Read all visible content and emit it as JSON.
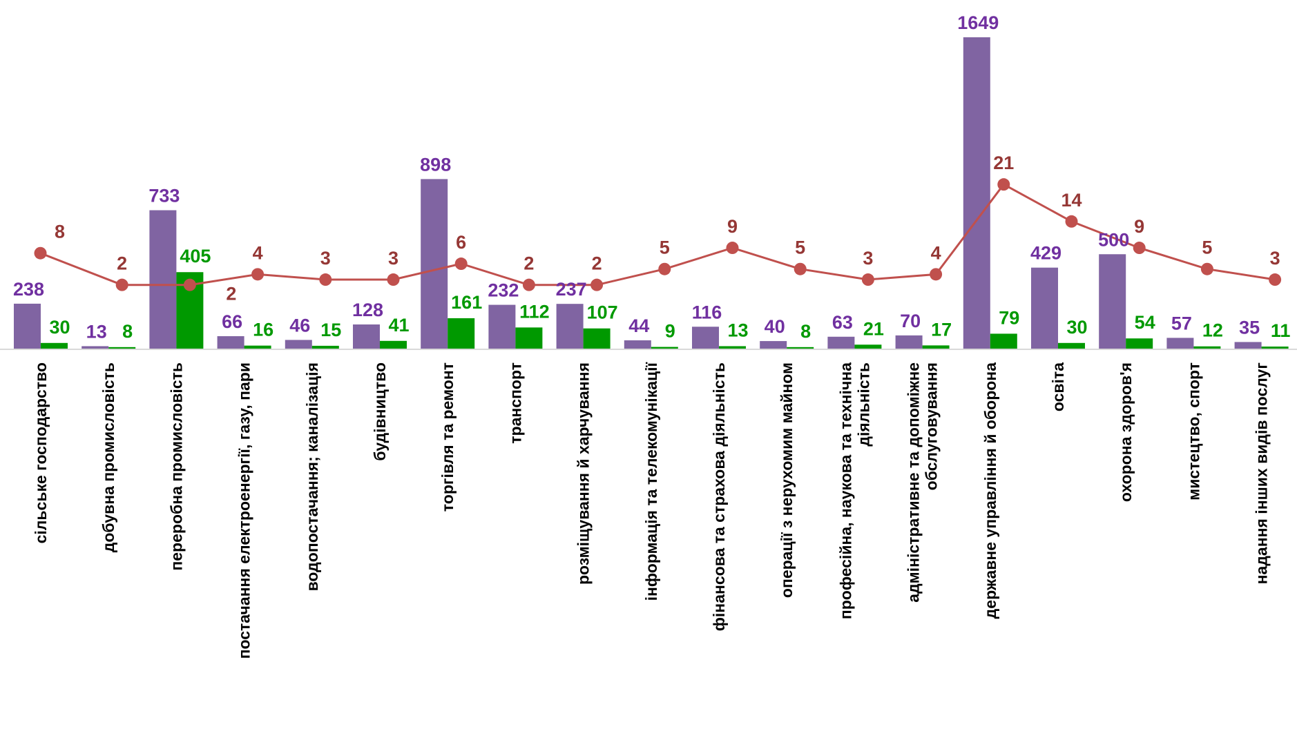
{
  "chart_data": {
    "type": "bar",
    "categories": [
      [
        "сільське господарство"
      ],
      [
        "добувна промисловість"
      ],
      [
        "переробна промисловість"
      ],
      [
        "постачання електроенергії, газу, пари"
      ],
      [
        "водопостачання; каналізація"
      ],
      [
        "будівництво"
      ],
      [
        "торгівля та ремонт"
      ],
      [
        "транспорт"
      ],
      [
        "розміщування й харчування"
      ],
      [
        "інформація та телекомунікації"
      ],
      [
        "фінансова та страхова діяльність"
      ],
      [
        "операції з нерухомим майном"
      ],
      [
        "професійна, наукова та технічна",
        "діяльність"
      ],
      [
        "адміністративне та допоміжне",
        "обслуговування"
      ],
      [
        "державне управління й оборона"
      ],
      [
        "освіта"
      ],
      [
        "охорона здоров'я"
      ],
      [
        "мистецтво, спорт"
      ],
      [
        "надання інших видів послуг"
      ]
    ],
    "series": [
      {
        "type": "bar",
        "color": "#8064a2",
        "label_color": "#7030a0",
        "values": [
          238,
          13,
          733,
          66,
          46,
          128,
          898,
          232,
          237,
          44,
          116,
          40,
          63,
          70,
          1649,
          429,
          500,
          57,
          35
        ]
      },
      {
        "type": "bar",
        "color": "#009900",
        "label_color": "#009900",
        "values": [
          30,
          8,
          405,
          16,
          15,
          41,
          161,
          112,
          107,
          9,
          13,
          8,
          21,
          17,
          79,
          30,
          54,
          12,
          11
        ]
      },
      {
        "type": "line",
        "color": "#c0504d",
        "label_color": "#953735",
        "values": [
          8,
          2,
          2,
          4,
          3,
          3,
          6,
          2,
          2,
          5,
          9,
          5,
          3,
          4,
          21,
          14,
          9,
          5,
          3
        ]
      }
    ],
    "ylim": [
      0,
      1649
    ],
    "grid": false,
    "legend": "none"
  }
}
